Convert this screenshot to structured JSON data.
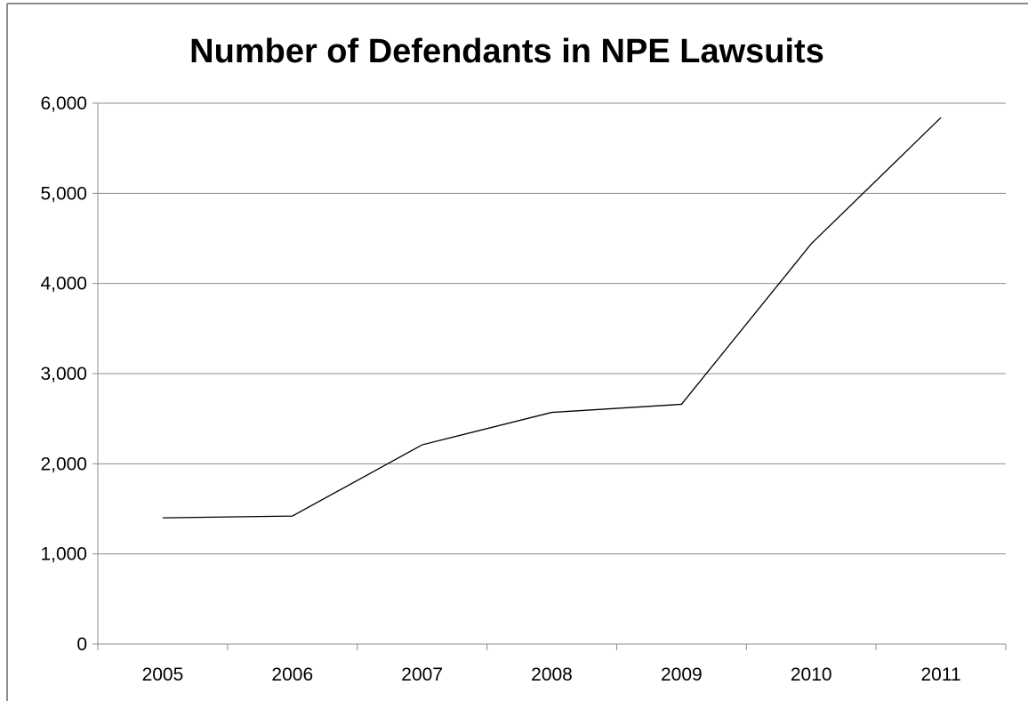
{
  "chart_data": {
    "type": "line",
    "title": "Number of Defendants in NPE Lawsuits",
    "xlabel": "",
    "ylabel": "",
    "categories": [
      "2005",
      "2006",
      "2007",
      "2008",
      "2009",
      "2010",
      "2011"
    ],
    "series": [
      {
        "values": [
          1400,
          1420,
          2210,
          2570,
          2660,
          4440,
          5840
        ]
      }
    ],
    "ylim": [
      0,
      6000
    ],
    "yticks": [
      0,
      1000,
      2000,
      3000,
      4000,
      5000,
      6000
    ],
    "ytick_labels": [
      "0",
      "1,000",
      "2,000",
      "3,000",
      "4,000",
      "5,000",
      "6,000"
    ],
    "grid": true,
    "legend": "none",
    "colors": {
      "line": "#000000",
      "grid": "#8c8c8c",
      "background": "#ffffff"
    }
  }
}
